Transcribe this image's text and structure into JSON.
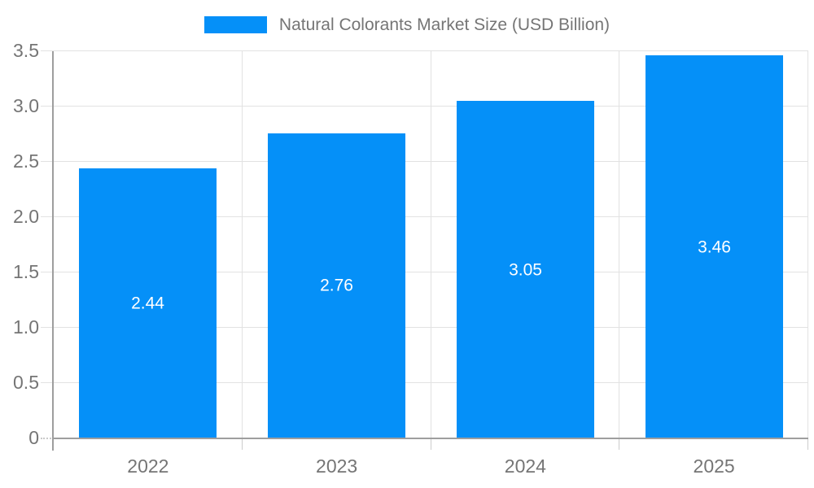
{
  "legend": {
    "label": "Natural Colorants Market Size (USD Billion)"
  },
  "colors": {
    "bar": "#0590f8",
    "axis": "#9e9e9e",
    "grid": "#e2e2e2",
    "boundary_tick": "#cccccc",
    "tick_text": "#757575",
    "data_label": "#ffffff",
    "legend_text": "#757575"
  },
  "chart_data": {
    "type": "bar",
    "title": "Natural Colorants Market Size (USD Billion)",
    "categories": [
      "2022",
      "2023",
      "2024",
      "2025"
    ],
    "series": [
      {
        "name": "Natural Colorants Market Size (USD Billion)",
        "values": [
          2.44,
          2.76,
          3.05,
          3.46
        ]
      }
    ],
    "value_labels": [
      "2.44",
      "2.76",
      "3.05",
      "3.46"
    ],
    "xlabel": "",
    "ylabel": "",
    "ylim": [
      0,
      3.5
    ],
    "ytick_step": 0.5,
    "yticks": [
      "0",
      "0.5",
      "1.0",
      "1.5",
      "2.0",
      "2.5",
      "3.0",
      "3.5"
    ],
    "grid": true,
    "legend_position": "top",
    "data_label_position": "bar-center"
  }
}
